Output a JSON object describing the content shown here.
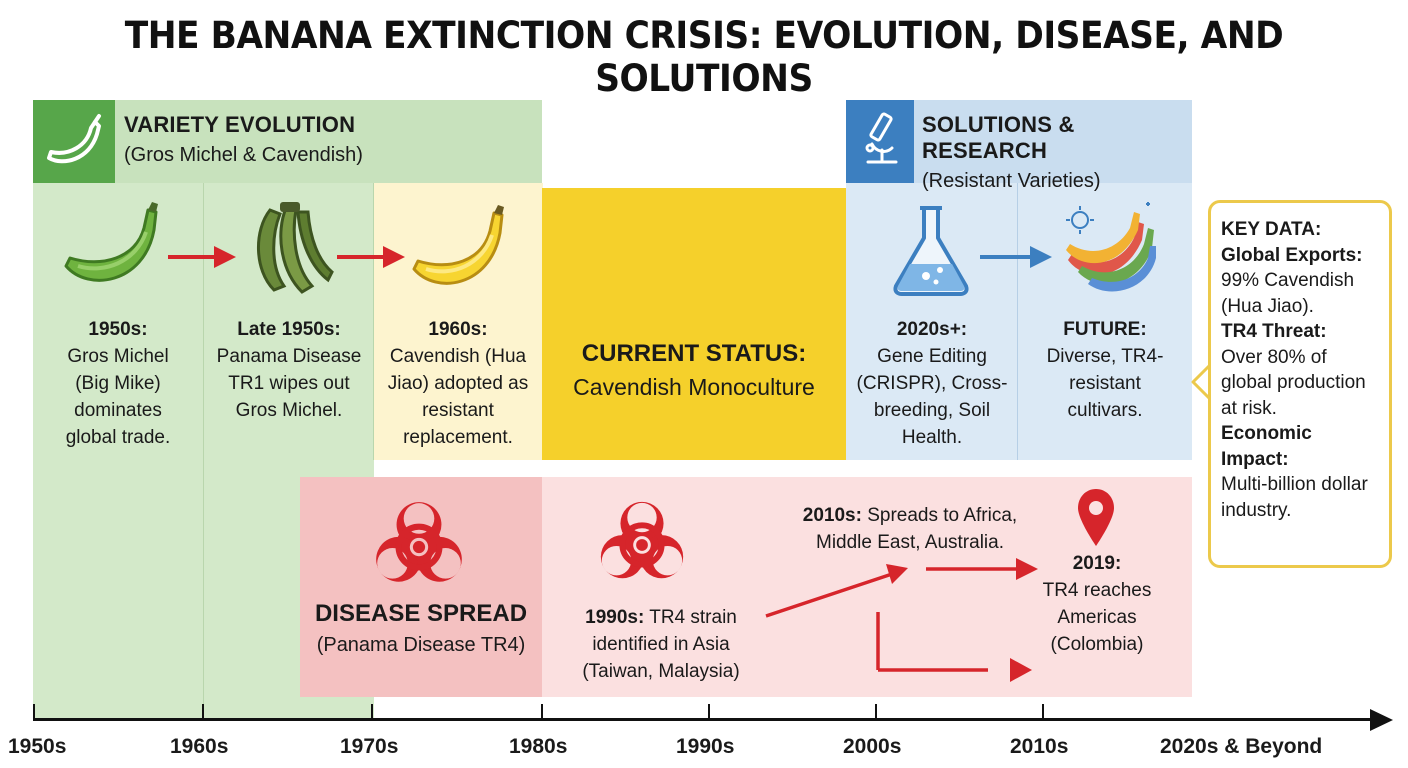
{
  "title": "THE BANANA EXTINCTION CRISIS: EVOLUTION, DISEASE, AND SOLUTIONS",
  "colors": {
    "variety_light": "#d3e9c9",
    "variety_header": "#c8e2bd",
    "variety_icon_bg": "#57a64a",
    "column_yellow_bg": "#fdf4cf",
    "current_status": "#f5d02b",
    "solutions_light": "#dbe9f5",
    "solutions_header": "#c9ddef",
    "solutions_icon_bg": "#3c7fc0",
    "disease_light": "#fbe0e0",
    "disease_dark": "#f4c1c1",
    "red": "#d6252b",
    "key_border": "#ecc94b"
  },
  "variety": {
    "header_title": "VARIETY EVOLUTION",
    "header_sub": "(Gros Michel & Cavendish)",
    "icon": "banana-outline-icon",
    "steps": [
      {
        "heading": "1950s:",
        "text": "Gros Michel (Big Mike) dominates global trade.",
        "icon": "green-banana-icon"
      },
      {
        "heading": "Late 1950s:",
        "text": "Panama Disease TR1 wipes out Gros Michel.",
        "icon": "diseased-banana-bunch-icon"
      },
      {
        "heading": "1960s:",
        "text": "Cavendish (Hua Jiao) adopted as resistant replacement.",
        "icon": "yellow-banana-icon"
      }
    ]
  },
  "current_status": {
    "title": "CURRENT STATUS:",
    "text": "Cavendish Monoculture"
  },
  "solutions": {
    "header_title": "SOLUTIONS & RESEARCH",
    "header_sub": "(Resistant Varieties)",
    "icon": "microscope-icon",
    "steps": [
      {
        "heading": "2020s+:",
        "text": "Gene Editing (CRISPR), Cross-breeding, Soil Health.",
        "icon": "flask-icon"
      },
      {
        "heading": "FUTURE:",
        "text": "Diverse, TR4-resistant cultivars.",
        "icon": "rainbow-bananas-icon"
      }
    ]
  },
  "disease": {
    "title": "DISEASE SPREAD",
    "sub": "(Panama Disease TR4)",
    "icon": "biohazard-icon",
    "event_1990s_heading": "1990s:",
    "event_1990s_text": "TR4 strain identified in Asia (Taiwan, Malaysia)",
    "event_2010s_heading": "2010s:",
    "event_2010s_text": "Spreads to Africa, Middle East, Australia.",
    "event_2019_heading": "2019:",
    "event_2019_text": "TR4 reaches Americas (Colombia)",
    "pin_icon": "location-pin-icon"
  },
  "key_data": {
    "title": "KEY DATA:",
    "exports_label": "Global Exports:",
    "exports_value": "99% Cavendish (Hua Jiao).",
    "threat_label": "TR4 Threat:",
    "threat_value": "Over 80% of global production at risk.",
    "impact_label": "Economic Impact:",
    "impact_value": "Multi-billion dollar industry."
  },
  "axis": {
    "labels": [
      "1950s",
      "1960s",
      "1970s",
      "1980s",
      "1990s",
      "2000s",
      "2010s",
      "2020s & Beyond"
    ]
  }
}
